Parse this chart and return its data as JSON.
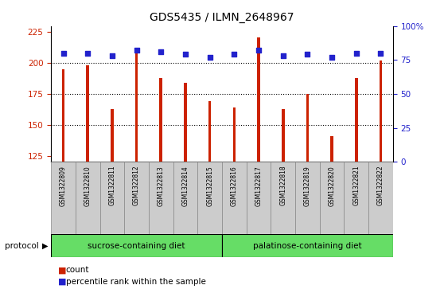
{
  "title": "GDS5435 / ILMN_2648967",
  "samples": [
    "GSM1322809",
    "GSM1322810",
    "GSM1322811",
    "GSM1322812",
    "GSM1322813",
    "GSM1322814",
    "GSM1322815",
    "GSM1322816",
    "GSM1322817",
    "GSM1322818",
    "GSM1322819",
    "GSM1322820",
    "GSM1322821",
    "GSM1322822"
  ],
  "counts": [
    195,
    198,
    163,
    209,
    188,
    184,
    169,
    164,
    221,
    163,
    175,
    141,
    188,
    202
  ],
  "percentile_ranks": [
    80,
    80,
    78,
    82,
    81,
    79,
    77,
    79,
    82,
    78,
    79,
    77,
    80,
    80
  ],
  "ylim_left": [
    120,
    230
  ],
  "ylim_right": [
    0,
    100
  ],
  "yticks_left": [
    125,
    150,
    175,
    200,
    225
  ],
  "yticks_right": [
    0,
    25,
    50,
    75,
    100
  ],
  "yright_labels": [
    "0",
    "25",
    "50",
    "75",
    "100%"
  ],
  "bar_color": "#cc2200",
  "dot_color": "#2222cc",
  "grid_values": [
    150,
    175,
    200
  ],
  "group1_label": "sucrose-containing diet",
  "group1_count": 7,
  "group2_label": "palatinose-containing diet",
  "group2_count": 7,
  "group_bg_color": "#66dd66",
  "tick_label_bg": "#cccccc",
  "protocol_label": "protocol",
  "legend_count_label": "count",
  "legend_percentile_label": "percentile rank within the sample",
  "title_fontsize": 10,
  "tick_fontsize": 7.5,
  "bar_width": 0.12,
  "dot_size": 20
}
